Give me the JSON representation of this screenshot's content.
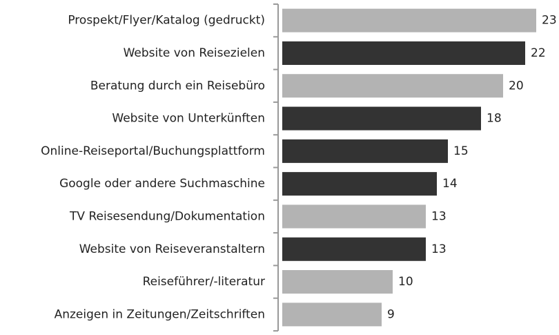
{
  "chart_data": {
    "type": "hbar",
    "categories": [
      "Prospekt/Flyer/Katalog (gedruckt)",
      "Website von Reisezielen",
      "Beratung durch ein Reisebüro",
      "Website von Unterkünften",
      "Online-Reiseportal/Buchungsplattform",
      "Google oder andere Suchmaschine",
      "TV Reisesendung/Dokumentation",
      "Website von Reiseveranstaltern",
      "Reiseführer/-literatur",
      "Anzeigen in Zeitungen/Zeitschriften"
    ],
    "values": [
      23,
      22,
      20,
      18,
      15,
      14,
      13,
      13,
      10,
      9
    ],
    "colors": [
      "#b3b3b3",
      "#333333",
      "#b3b3b3",
      "#333333",
      "#333333",
      "#333333",
      "#b3b3b3",
      "#333333",
      "#b3b3b3",
      "#b3b3b3"
    ],
    "xlim": [
      0,
      25
    ]
  }
}
